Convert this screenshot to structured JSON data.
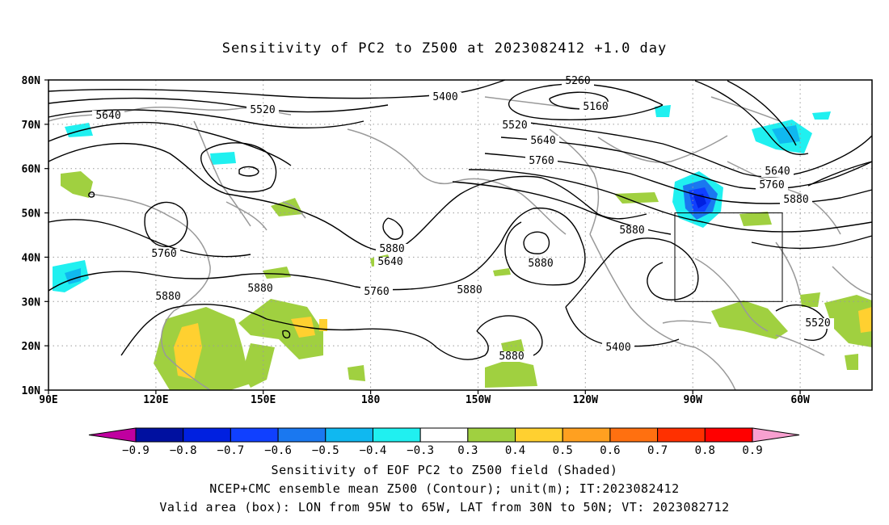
{
  "title": "Sensitivity of PC2 to Z500 at 2023082412 +1.0 day",
  "map": {
    "lat_labels": [
      "80N",
      "70N",
      "60N",
      "50N",
      "40N",
      "30N",
      "20N",
      "10N"
    ],
    "lon_labels": [
      "90E",
      "120E",
      "150E",
      "180",
      "150W",
      "120W",
      "90W",
      "60W"
    ],
    "contour_labels": [
      "5260",
      "5160",
      "5400",
      "5520",
      "5640",
      "5520",
      "5640",
      "5760",
      "5880",
      "5640",
      "5760",
      "5880",
      "5880",
      "5760",
      "5880",
      "5880",
      "5880",
      "5880",
      "5400",
      "5520",
      "5640",
      "5760",
      "5880"
    ],
    "valid_box": {
      "lon_range": "95W to 65W",
      "lat_range": "30N to 50N"
    }
  },
  "colorbar": {
    "labels": [
      "−0.9",
      "−0.8",
      "−0.7",
      "−0.6",
      "−0.5",
      "−0.4",
      "−0.3",
      "0.3",
      "0.4",
      "0.5",
      "0.6",
      "0.7",
      "0.8",
      "0.9"
    ],
    "colors": [
      "#c000a0",
      "#0010a0",
      "#0020e0",
      "#1040ff",
      "#1a78f0",
      "#10b8f0",
      "#20f0f0",
      "#ffffff",
      "#a0d040",
      "#ffd030",
      "#ffa020",
      "#ff7010",
      "#ff3000",
      "#ff0000",
      "#f8a0d0"
    ]
  },
  "caption": {
    "line1": "Sensitivity of EOF PC2 to Z500 field (Shaded)",
    "line2": "NCEP+CMC ensemble mean Z500 (Contour); unit(m); IT:2023082412",
    "line3": "Valid area (box): LON from 95W to 65W, LAT from 30N to 50N; VT: 2023082712"
  }
}
